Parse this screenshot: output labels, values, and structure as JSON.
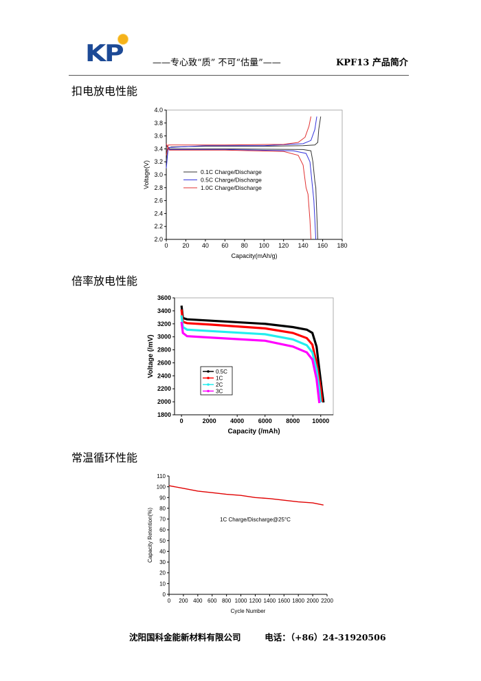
{
  "header": {
    "logo_text": "KP",
    "slogan": "——专心致“质”    不可“估量”——",
    "doc_title": "KPF13 产品简介"
  },
  "sections": [
    {
      "title": "扣电放电性能"
    },
    {
      "title": "倍率放电性能"
    },
    {
      "title": "常温循环性能"
    }
  ],
  "footer": {
    "company": "沈阳国科金能新材料有限公司",
    "phone": "电话：（+86）24-31920506"
  },
  "chart_data": [
    {
      "type": "line",
      "title": "",
      "xlabel": "Capacity(mAh/g)",
      "ylabel": "Voltage(V)",
      "xlim": [
        0,
        180
      ],
      "ylim": [
        2.0,
        4.0
      ],
      "xticks": [
        "0",
        "20",
        "40",
        "60",
        "80",
        "100",
        "120",
        "140",
        "160",
        "180"
      ],
      "yticks": [
        "2.0",
        "2.2",
        "2.4",
        "2.6",
        "2.8",
        "3.0",
        "3.2",
        "3.4",
        "3.6",
        "3.8",
        "4.0"
      ],
      "legend_position": "center-left",
      "series": [
        {
          "name": "0.1C Charge/Discharge",
          "color": "#333333",
          "charge": [
            [
              0,
              3.2
            ],
            [
              1,
              3.4
            ],
            [
              5,
              3.43
            ],
            [
              40,
              3.44
            ],
            [
              100,
              3.44
            ],
            [
              140,
              3.45
            ],
            [
              152,
              3.46
            ],
            [
              155,
              3.5
            ],
            [
              156,
              3.7
            ],
            [
              158,
              3.9
            ]
          ],
          "discharge": [
            [
              0,
              3.45
            ],
            [
              3,
              3.4
            ],
            [
              60,
              3.4
            ],
            [
              140,
              3.39
            ],
            [
              148,
              3.37
            ],
            [
              150,
              3.2
            ],
            [
              152,
              2.9
            ],
            [
              153,
              2.8
            ],
            [
              154,
              2.4
            ],
            [
              155,
              2.0
            ]
          ]
        },
        {
          "name": "0.5C Charge/Discharge",
          "color": "#3333dd",
          "charge": [
            [
              0,
              3.1
            ],
            [
              2,
              3.42
            ],
            [
              40,
              3.45
            ],
            [
              100,
              3.45
            ],
            [
              140,
              3.48
            ],
            [
              148,
              3.53
            ],
            [
              152,
              3.7
            ],
            [
              154,
              3.9
            ]
          ],
          "discharge": [
            [
              0,
              3.47
            ],
            [
              3,
              3.39
            ],
            [
              60,
              3.39
            ],
            [
              130,
              3.37
            ],
            [
              143,
              3.33
            ],
            [
              147,
              3.2
            ],
            [
              149,
              2.9
            ],
            [
              151,
              2.6
            ],
            [
              153,
              2.0
            ]
          ]
        },
        {
          "name": "1.0C Charge/Discharge",
          "color": "#e03030",
          "charge": [
            [
              0,
              3.3
            ],
            [
              2,
              3.46
            ],
            [
              60,
              3.46
            ],
            [
              120,
              3.47
            ],
            [
              135,
              3.5
            ],
            [
              142,
              3.58
            ],
            [
              146,
              3.75
            ],
            [
              148,
              3.9
            ]
          ],
          "discharge": [
            [
              0,
              3.48
            ],
            [
              3,
              3.38
            ],
            [
              60,
              3.38
            ],
            [
              120,
              3.36
            ],
            [
              135,
              3.3
            ],
            [
              140,
              3.15
            ],
            [
              143,
              2.8
            ],
            [
              145,
              2.7
            ],
            [
              147,
              2.3
            ],
            [
              148,
              2.0
            ]
          ]
        }
      ]
    },
    {
      "type": "line",
      "title": "",
      "xlabel": "Capacity (/mAh)",
      "ylabel": "Voltage (/mV)",
      "xlim": [
        -500,
        10900
      ],
      "ylim": [
        1800,
        3600
      ],
      "xticks": [
        "0",
        "2000",
        "4000",
        "6000",
        "8000",
        "10000"
      ],
      "yticks": [
        "1800",
        "2000",
        "2200",
        "2400",
        "2600",
        "2800",
        "3000",
        "3200",
        "3400",
        "3600"
      ],
      "legend_position": "bottom-left",
      "series": [
        {
          "name": "0.5C",
          "color": "#000000",
          "points": [
            [
              0,
              3480
            ],
            [
              100,
              3290
            ],
            [
              400,
              3270
            ],
            [
              2000,
              3250
            ],
            [
              6000,
              3200
            ],
            [
              8000,
              3150
            ],
            [
              9000,
              3110
            ],
            [
              9400,
              3060
            ],
            [
              9700,
              2850
            ],
            [
              9900,
              2500
            ],
            [
              10100,
              2150
            ],
            [
              10200,
              1990
            ]
          ]
        },
        {
          "name": "1C",
          "color": "#ff0000",
          "points": [
            [
              0,
              3420
            ],
            [
              100,
              3230
            ],
            [
              400,
              3210
            ],
            [
              2000,
              3190
            ],
            [
              6000,
              3130
            ],
            [
              8000,
              3060
            ],
            [
              9000,
              2980
            ],
            [
              9400,
              2880
            ],
            [
              9700,
              2600
            ],
            [
              10000,
              2200
            ],
            [
              10100,
              2000
            ]
          ]
        },
        {
          "name": "2C",
          "color": "#22eeee",
          "points": [
            [
              0,
              3330
            ],
            [
              100,
              3150
            ],
            [
              400,
              3110
            ],
            [
              2000,
              3090
            ],
            [
              6000,
              3040
            ],
            [
              8000,
              2960
            ],
            [
              9000,
              2870
            ],
            [
              9400,
              2760
            ],
            [
              9700,
              2500
            ],
            [
              9900,
              2200
            ],
            [
              10000,
              1990
            ]
          ]
        },
        {
          "name": "3C",
          "color": "#ff00ff",
          "points": [
            [
              0,
              3230
            ],
            [
              100,
              3060
            ],
            [
              400,
              3010
            ],
            [
              2000,
              2990
            ],
            [
              6000,
              2940
            ],
            [
              8000,
              2850
            ],
            [
              9000,
              2760
            ],
            [
              9400,
              2650
            ],
            [
              9700,
              2350
            ],
            [
              9900,
              1980
            ]
          ]
        }
      ]
    },
    {
      "type": "line",
      "title": "",
      "xlabel": "Cycle Number",
      "ylabel": "Capacity Retention(%)",
      "xlim": [
        0,
        2200
      ],
      "ylim": [
        0,
        110
      ],
      "xticks": [
        "0",
        "200",
        "400",
        "600",
        "800",
        "1000",
        "1200",
        "1400",
        "1600",
        "1800",
        "2000",
        "2200"
      ],
      "yticks": [
        "0",
        "10",
        "20",
        "30",
        "40",
        "50",
        "60",
        "70",
        "80",
        "90",
        "100",
        "110"
      ],
      "annotation": "1C Charge/Discharge@25°C",
      "series": [
        {
          "name": "1C",
          "color": "#e00000",
          "points": [
            [
              0,
              101
            ],
            [
              200,
              98.5
            ],
            [
              400,
              96
            ],
            [
              600,
              94.5
            ],
            [
              800,
              93
            ],
            [
              1000,
              92
            ],
            [
              1200,
              90
            ],
            [
              1400,
              89
            ],
            [
              1600,
              87.5
            ],
            [
              1800,
              86
            ],
            [
              2000,
              85
            ],
            [
              2150,
              83
            ]
          ]
        }
      ]
    }
  ]
}
